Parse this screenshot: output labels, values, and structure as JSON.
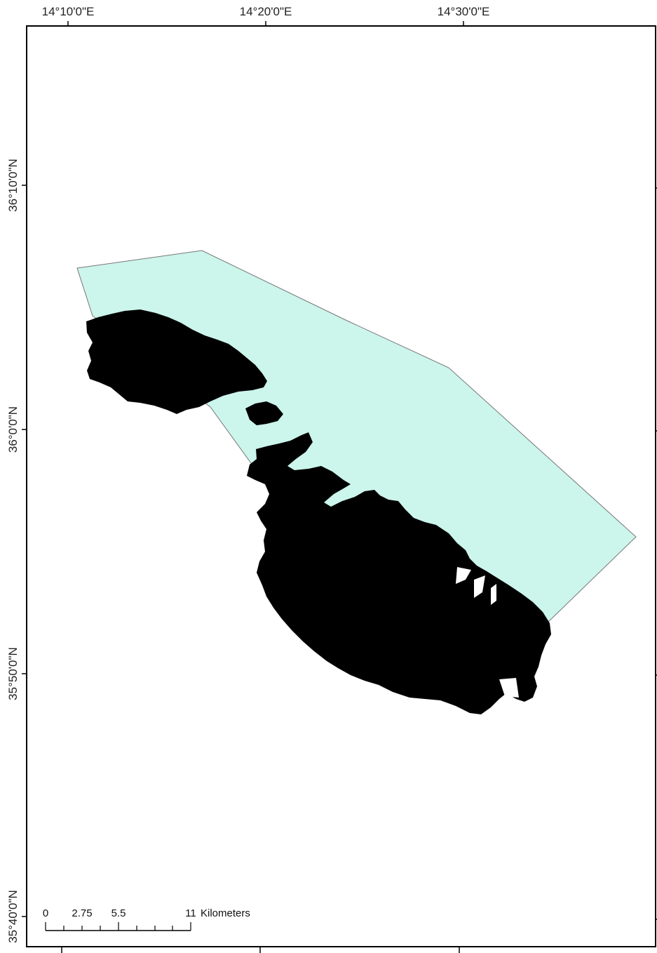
{
  "map": {
    "longitude_labels": [
      "14°10'0\"E",
      "14°20'0\"E",
      "14°30'0\"E"
    ],
    "latitude_labels": [
      "36°10'0\"N",
      "36°0'0\"N",
      "35°50'0\"N",
      "35°40'0\"N"
    ],
    "colors": {
      "land": "#000000",
      "zone_fill": "#ccf5ec",
      "zone_stroke": "#777777",
      "frame": "#000000"
    },
    "features": {
      "islands": [
        "Gozo",
        "Comino",
        "Malta"
      ],
      "zone": "study-area-polygon"
    }
  },
  "scale_bar": {
    "ticks": [
      "0",
      "2.75",
      "5.5",
      "11"
    ],
    "unit": "Kilometers"
  }
}
